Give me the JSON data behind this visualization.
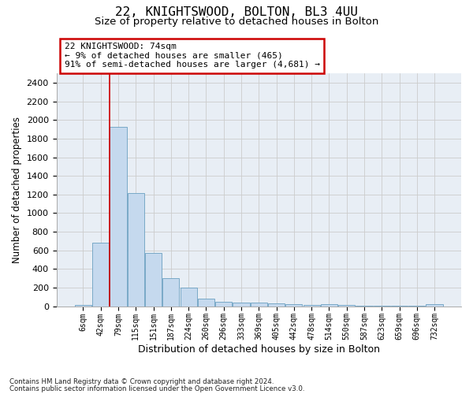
{
  "title1": "22, KNIGHTSWOOD, BOLTON, BL3 4UU",
  "title2": "Size of property relative to detached houses in Bolton",
  "xlabel": "Distribution of detached houses by size in Bolton",
  "ylabel": "Number of detached properties",
  "bar_labels": [
    "6sqm",
    "42sqm",
    "79sqm",
    "115sqm",
    "151sqm",
    "187sqm",
    "224sqm",
    "260sqm",
    "296sqm",
    "333sqm",
    "369sqm",
    "405sqm",
    "442sqm",
    "478sqm",
    "514sqm",
    "550sqm",
    "587sqm",
    "623sqm",
    "659sqm",
    "696sqm",
    "732sqm"
  ],
  "bar_values": [
    15,
    680,
    1930,
    1220,
    570,
    305,
    200,
    80,
    50,
    38,
    38,
    30,
    20,
    15,
    25,
    10,
    5,
    5,
    5,
    5,
    20
  ],
  "bar_color": "#c5d9ee",
  "bar_edge_color": "#6a9fc0",
  "bar_width": 0.95,
  "ylim": [
    0,
    2500
  ],
  "yticks": [
    0,
    200,
    400,
    600,
    800,
    1000,
    1200,
    1400,
    1600,
    1800,
    2000,
    2200,
    2400
  ],
  "vline_x": 1.5,
  "vline_color": "#cc0000",
  "annotation_text": "22 KNIGHTSWOOD: 74sqm\n← 9% of detached houses are smaller (465)\n91% of semi-detached houses are larger (4,681) →",
  "annotation_box_color": "#cc0000",
  "footer1": "Contains HM Land Registry data © Crown copyright and database right 2024.",
  "footer2": "Contains public sector information licensed under the Open Government Licence v3.0.",
  "bg_color": "#ffffff",
  "grid_color": "#cccccc",
  "axes_bg": "#e8eef5",
  "title1_fontsize": 11.5,
  "title2_fontsize": 9.5,
  "tick_fontsize": 7,
  "ylabel_fontsize": 8.5,
  "xlabel_fontsize": 9
}
